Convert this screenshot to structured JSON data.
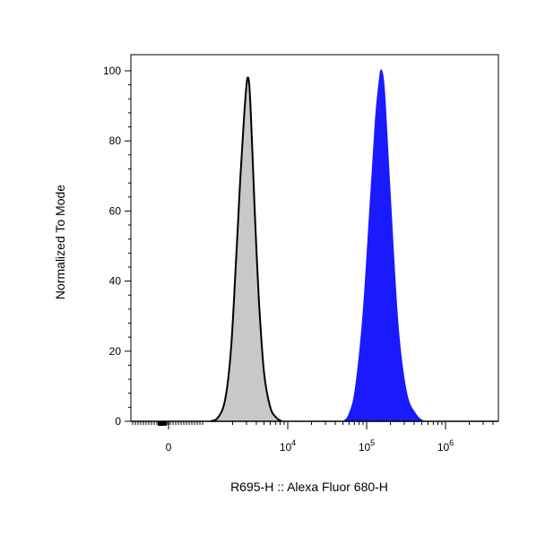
{
  "chart_data": {
    "type": "area",
    "xlabel": "R695-H :: Alexa Fluor 680-H",
    "ylabel": "Normalized To Mode",
    "ylim": [
      0,
      100
    ],
    "x_scale": "biexponential (linear near zero, log above)",
    "y_ticks": [
      "0",
      "20",
      "40",
      "60",
      "80",
      "100"
    ],
    "x_ticks": [
      {
        "value": 0,
        "base": "0",
        "exp": ""
      },
      {
        "value": 10000,
        "base": "10",
        "exp": "4"
      },
      {
        "value": 100000,
        "base": "10",
        "exp": "5"
      },
      {
        "value": 1000000,
        "base": "10",
        "exp": "6"
      }
    ],
    "grid": false,
    "legend": "none",
    "series": [
      {
        "color": "#c8c8c8",
        "stroke": "#000000",
        "x": [
          1050,
          1300,
          1600,
          1900,
          2200,
          2500,
          2800,
          3000,
          3150,
          3300,
          3500,
          3800,
          4300,
          5000,
          6000,
          7200,
          8400
        ],
        "y": [
          0,
          1,
          6,
          20,
          45,
          69,
          87,
          96,
          98,
          94,
          81,
          61,
          35,
          14,
          4,
          1,
          0
        ]
      },
      {
        "color": "#1a1aff",
        "stroke": "#1a1aff",
        "x": [
          52000,
          60000,
          72000,
          90000,
          110000,
          130000,
          145000,
          155000,
          170000,
          200000,
          250000,
          320000,
          420000,
          520000
        ],
        "y": [
          0,
          2,
          9,
          30,
          60,
          86,
          97,
          100,
          92,
          63,
          27,
          8,
          2,
          0
        ]
      }
    ]
  }
}
